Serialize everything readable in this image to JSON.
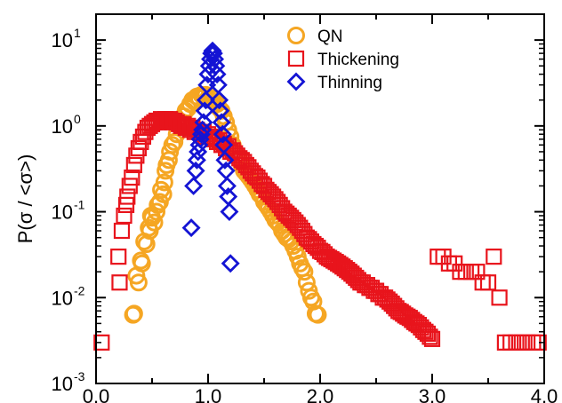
{
  "chart_data": {
    "type": "scatter",
    "title": "",
    "xlabel": "",
    "ylabel": "P(σ / <σ>)",
    "xlim": [
      0.0,
      4.0
    ],
    "ylim": [
      0.001,
      20
    ],
    "yscale": "log",
    "grid": false,
    "legend_placement": "top-center",
    "x_ticks": [
      {
        "value": 0.0,
        "label": "0.0"
      },
      {
        "value": 1.0,
        "label": "1.0"
      },
      {
        "value": 2.0,
        "label": "2.0"
      },
      {
        "value": 3.0,
        "label": "3.0"
      },
      {
        "value": 4.0,
        "label": "4.0"
      }
    ],
    "y_ticks": [
      {
        "value": 0.001,
        "base": "10",
        "exp": "-3"
      },
      {
        "value": 0.01,
        "base": "10",
        "exp": "-2"
      },
      {
        "value": 0.1,
        "base": "10",
        "exp": "-1"
      },
      {
        "value": 1,
        "base": "10",
        "exp": "0"
      },
      {
        "value": 10,
        "base": "10",
        "exp": "1"
      }
    ],
    "series": [
      {
        "name": "QN",
        "marker": "circle",
        "color": "#f5a623",
        "points": [
          [
            0.33,
            0.0063
          ],
          [
            0.34,
            0.0065
          ],
          [
            0.36,
            0.018
          ],
          [
            0.38,
            0.015
          ],
          [
            0.4,
            0.027
          ],
          [
            0.41,
            0.025
          ],
          [
            0.43,
            0.045
          ],
          [
            0.45,
            0.042
          ],
          [
            0.47,
            0.065
          ],
          [
            0.48,
            0.06
          ],
          [
            0.49,
            0.09
          ],
          [
            0.5,
            0.085
          ],
          [
            0.52,
            0.075
          ],
          [
            0.54,
            0.1
          ],
          [
            0.55,
            0.12
          ],
          [
            0.57,
            0.13
          ],
          [
            0.58,
            0.18
          ],
          [
            0.6,
            0.16
          ],
          [
            0.61,
            0.22
          ],
          [
            0.62,
            0.3
          ],
          [
            0.63,
            0.35
          ],
          [
            0.65,
            0.4
          ],
          [
            0.66,
            0.5
          ],
          [
            0.68,
            0.6
          ],
          [
            0.7,
            0.65
          ],
          [
            0.72,
            0.8
          ],
          [
            0.74,
            1.0
          ],
          [
            0.76,
            1.1
          ],
          [
            0.78,
            1.3
          ],
          [
            0.8,
            1.5
          ],
          [
            0.82,
            1.6
          ],
          [
            0.84,
            1.8
          ],
          [
            0.86,
            2.0
          ],
          [
            0.88,
            1.9
          ],
          [
            0.9,
            2.2
          ],
          [
            0.92,
            2.1
          ],
          [
            0.94,
            2.3
          ],
          [
            0.96,
            2.2
          ],
          [
            0.98,
            2.3
          ],
          [
            1.0,
            2.1
          ],
          [
            1.02,
            2.0
          ],
          [
            1.04,
            2.1
          ],
          [
            1.06,
            1.9
          ],
          [
            1.08,
            1.8
          ],
          [
            1.1,
            1.6
          ],
          [
            1.12,
            1.5
          ],
          [
            1.14,
            1.3
          ],
          [
            1.16,
            1.1
          ],
          [
            1.18,
            0.9
          ],
          [
            1.2,
            0.75
          ],
          [
            1.22,
            0.6
          ],
          [
            1.24,
            0.5
          ],
          [
            1.26,
            0.45
          ],
          [
            1.28,
            0.4
          ],
          [
            1.3,
            0.35
          ],
          [
            1.32,
            0.3
          ],
          [
            1.34,
            0.28
          ],
          [
            1.36,
            0.26
          ],
          [
            1.38,
            0.24
          ],
          [
            1.4,
            0.22
          ],
          [
            1.42,
            0.2
          ],
          [
            1.44,
            0.18
          ],
          [
            1.46,
            0.16
          ],
          [
            1.48,
            0.15
          ],
          [
            1.5,
            0.13
          ],
          [
            1.52,
            0.12
          ],
          [
            1.54,
            0.11
          ],
          [
            1.56,
            0.1
          ],
          [
            1.58,
            0.09
          ],
          [
            1.6,
            0.08
          ],
          [
            1.62,
            0.075
          ],
          [
            1.64,
            0.07
          ],
          [
            1.66,
            0.06
          ],
          [
            1.68,
            0.055
          ],
          [
            1.7,
            0.05
          ],
          [
            1.72,
            0.048
          ],
          [
            1.74,
            0.045
          ],
          [
            1.76,
            0.04
          ],
          [
            1.78,
            0.035
          ],
          [
            1.8,
            0.03
          ],
          [
            1.82,
            0.025
          ],
          [
            1.84,
            0.022
          ],
          [
            1.86,
            0.02
          ],
          [
            1.88,
            0.015
          ],
          [
            1.9,
            0.012
          ],
          [
            1.92,
            0.01
          ],
          [
            1.94,
            0.009
          ],
          [
            1.96,
            0.0065
          ],
          [
            1.98,
            0.0063
          ]
        ]
      },
      {
        "name": "Thickening",
        "marker": "square",
        "color": "#e8141c",
        "points": [
          [
            0.05,
            0.003
          ],
          [
            0.2,
            0.03
          ],
          [
            0.21,
            0.015
          ],
          [
            0.23,
            0.06
          ],
          [
            0.25,
            0.09
          ],
          [
            0.27,
            0.12
          ],
          [
            0.28,
            0.15
          ],
          [
            0.3,
            0.2
          ],
          [
            0.32,
            0.25
          ],
          [
            0.34,
            0.35
          ],
          [
            0.36,
            0.45
          ],
          [
            0.38,
            0.55
          ],
          [
            0.4,
            0.65
          ],
          [
            0.42,
            0.75
          ],
          [
            0.44,
            0.85
          ],
          [
            0.46,
            0.95
          ],
          [
            0.48,
            1.0
          ],
          [
            0.5,
            1.05
          ],
          [
            0.52,
            1.1
          ],
          [
            0.54,
            1.15
          ],
          [
            0.56,
            1.1
          ],
          [
            0.58,
            1.2
          ],
          [
            0.6,
            1.15
          ],
          [
            0.62,
            1.2
          ],
          [
            0.64,
            1.15
          ],
          [
            0.66,
            1.2
          ],
          [
            0.68,
            1.1
          ],
          [
            0.7,
            1.15
          ],
          [
            0.72,
            1.1
          ],
          [
            0.74,
            1.05
          ],
          [
            0.76,
            1.0
          ],
          [
            0.78,
            1.05
          ],
          [
            0.8,
            0.95
          ],
          [
            0.82,
            1.0
          ],
          [
            0.84,
            0.9
          ],
          [
            0.86,
            0.95
          ],
          [
            0.88,
            0.85
          ],
          [
            0.9,
            0.9
          ],
          [
            0.92,
            0.85
          ],
          [
            0.94,
            0.8
          ],
          [
            0.96,
            0.85
          ],
          [
            0.98,
            0.75
          ],
          [
            1.0,
            0.8
          ],
          [
            1.02,
            0.75
          ],
          [
            1.04,
            0.7
          ],
          [
            1.06,
            0.72
          ],
          [
            1.08,
            0.65
          ],
          [
            1.1,
            0.68
          ],
          [
            1.12,
            0.6
          ],
          [
            1.14,
            0.62
          ],
          [
            1.16,
            0.55
          ],
          [
            1.18,
            0.58
          ],
          [
            1.2,
            0.5
          ],
          [
            1.22,
            0.52
          ],
          [
            1.24,
            0.48
          ],
          [
            1.26,
            0.45
          ],
          [
            1.28,
            0.42
          ],
          [
            1.3,
            0.4
          ],
          [
            1.32,
            0.38
          ],
          [
            1.34,
            0.35
          ],
          [
            1.36,
            0.33
          ],
          [
            1.38,
            0.3
          ],
          [
            1.4,
            0.28
          ],
          [
            1.42,
            0.26
          ],
          [
            1.44,
            0.25
          ],
          [
            1.46,
            0.23
          ],
          [
            1.48,
            0.21
          ],
          [
            1.5,
            0.2
          ],
          [
            1.52,
            0.18
          ],
          [
            1.54,
            0.17
          ],
          [
            1.56,
            0.16
          ],
          [
            1.58,
            0.15
          ],
          [
            1.6,
            0.14
          ],
          [
            1.62,
            0.13
          ],
          [
            1.64,
            0.12
          ],
          [
            1.66,
            0.11
          ],
          [
            1.68,
            0.1
          ],
          [
            1.7,
            0.095
          ],
          [
            1.72,
            0.09
          ],
          [
            1.74,
            0.085
          ],
          [
            1.76,
            0.08
          ],
          [
            1.78,
            0.075
          ],
          [
            1.8,
            0.07
          ],
          [
            1.82,
            0.065
          ],
          [
            1.84,
            0.06
          ],
          [
            1.86,
            0.055
          ],
          [
            1.88,
            0.05
          ],
          [
            1.9,
            0.048
          ],
          [
            1.92,
            0.045
          ],
          [
            1.94,
            0.042
          ],
          [
            1.96,
            0.04
          ],
          [
            1.98,
            0.038
          ],
          [
            2.0,
            0.035
          ],
          [
            2.02,
            0.034
          ],
          [
            2.04,
            0.032
          ],
          [
            2.06,
            0.03
          ],
          [
            2.08,
            0.029
          ],
          [
            2.1,
            0.028
          ],
          [
            2.12,
            0.027
          ],
          [
            2.14,
            0.026
          ],
          [
            2.16,
            0.025
          ],
          [
            2.18,
            0.024
          ],
          [
            2.2,
            0.023
          ],
          [
            2.22,
            0.022
          ],
          [
            2.24,
            0.021
          ],
          [
            2.26,
            0.02
          ],
          [
            2.28,
            0.019
          ],
          [
            2.3,
            0.018
          ],
          [
            2.32,
            0.017
          ],
          [
            2.34,
            0.016
          ],
          [
            2.36,
            0.015
          ],
          [
            2.38,
            0.015
          ],
          [
            2.4,
            0.014
          ],
          [
            2.42,
            0.014
          ],
          [
            2.44,
            0.013
          ],
          [
            2.46,
            0.013
          ],
          [
            2.48,
            0.012
          ],
          [
            2.5,
            0.012
          ],
          [
            2.52,
            0.011
          ],
          [
            2.54,
            0.011
          ],
          [
            2.56,
            0.01
          ],
          [
            2.58,
            0.01
          ],
          [
            2.6,
            0.0095
          ],
          [
            2.62,
            0.009
          ],
          [
            2.64,
            0.0085
          ],
          [
            2.66,
            0.008
          ],
          [
            2.68,
            0.0075
          ],
          [
            2.7,
            0.007
          ],
          [
            2.72,
            0.0068
          ],
          [
            2.74,
            0.0065
          ],
          [
            2.76,
            0.0062
          ],
          [
            2.78,
            0.006
          ],
          [
            2.8,
            0.0058
          ],
          [
            2.82,
            0.0055
          ],
          [
            2.84,
            0.0052
          ],
          [
            2.86,
            0.005
          ],
          [
            2.88,
            0.0048
          ],
          [
            2.9,
            0.0045
          ],
          [
            2.92,
            0.0042
          ],
          [
            2.94,
            0.004
          ],
          [
            2.96,
            0.0038
          ],
          [
            2.98,
            0.0035
          ],
          [
            3.0,
            0.0033
          ],
          [
            3.05,
            0.03
          ],
          [
            3.1,
            0.03
          ],
          [
            3.15,
            0.025
          ],
          [
            3.2,
            0.025
          ],
          [
            3.25,
            0.02
          ],
          [
            3.3,
            0.02
          ],
          [
            3.35,
            0.02
          ],
          [
            3.4,
            0.02
          ],
          [
            3.45,
            0.015
          ],
          [
            3.5,
            0.015
          ],
          [
            3.55,
            0.03
          ],
          [
            3.6,
            0.01
          ],
          [
            3.65,
            0.003
          ],
          [
            3.7,
            0.003
          ],
          [
            3.75,
            0.003
          ],
          [
            3.8,
            0.003
          ],
          [
            3.85,
            0.003
          ],
          [
            3.9,
            0.003
          ],
          [
            3.95,
            0.003
          ]
        ]
      },
      {
        "name": "Thinning",
        "marker": "diamond",
        "color": "#1414d4",
        "points": [
          [
            0.85,
            0.065
          ],
          [
            0.87,
            0.2
          ],
          [
            0.89,
            0.3
          ],
          [
            0.9,
            0.4
          ],
          [
            0.91,
            0.5
          ],
          [
            0.92,
            0.6
          ],
          [
            0.93,
            0.7
          ],
          [
            0.94,
            0.8
          ],
          [
            0.95,
            0.9
          ],
          [
            0.96,
            1.1
          ],
          [
            0.97,
            1.5
          ],
          [
            0.98,
            2.0
          ],
          [
            0.99,
            3.0
          ],
          [
            1.0,
            4.0
          ],
          [
            1.01,
            5.0
          ],
          [
            1.02,
            6.0
          ],
          [
            1.03,
            7.0
          ],
          [
            1.04,
            7.5
          ],
          [
            1.05,
            7.0
          ],
          [
            1.06,
            6.0
          ],
          [
            1.07,
            5.0
          ],
          [
            1.08,
            4.0
          ],
          [
            1.09,
            3.0
          ],
          [
            1.1,
            2.0
          ],
          [
            1.11,
            1.5
          ],
          [
            1.12,
            1.1
          ],
          [
            1.13,
            0.8
          ],
          [
            1.14,
            0.6
          ],
          [
            1.15,
            0.4
          ],
          [
            1.16,
            0.3
          ],
          [
            1.17,
            0.2
          ],
          [
            1.18,
            0.15
          ],
          [
            1.19,
            0.1
          ],
          [
            1.2,
            0.025
          ]
        ]
      }
    ]
  }
}
